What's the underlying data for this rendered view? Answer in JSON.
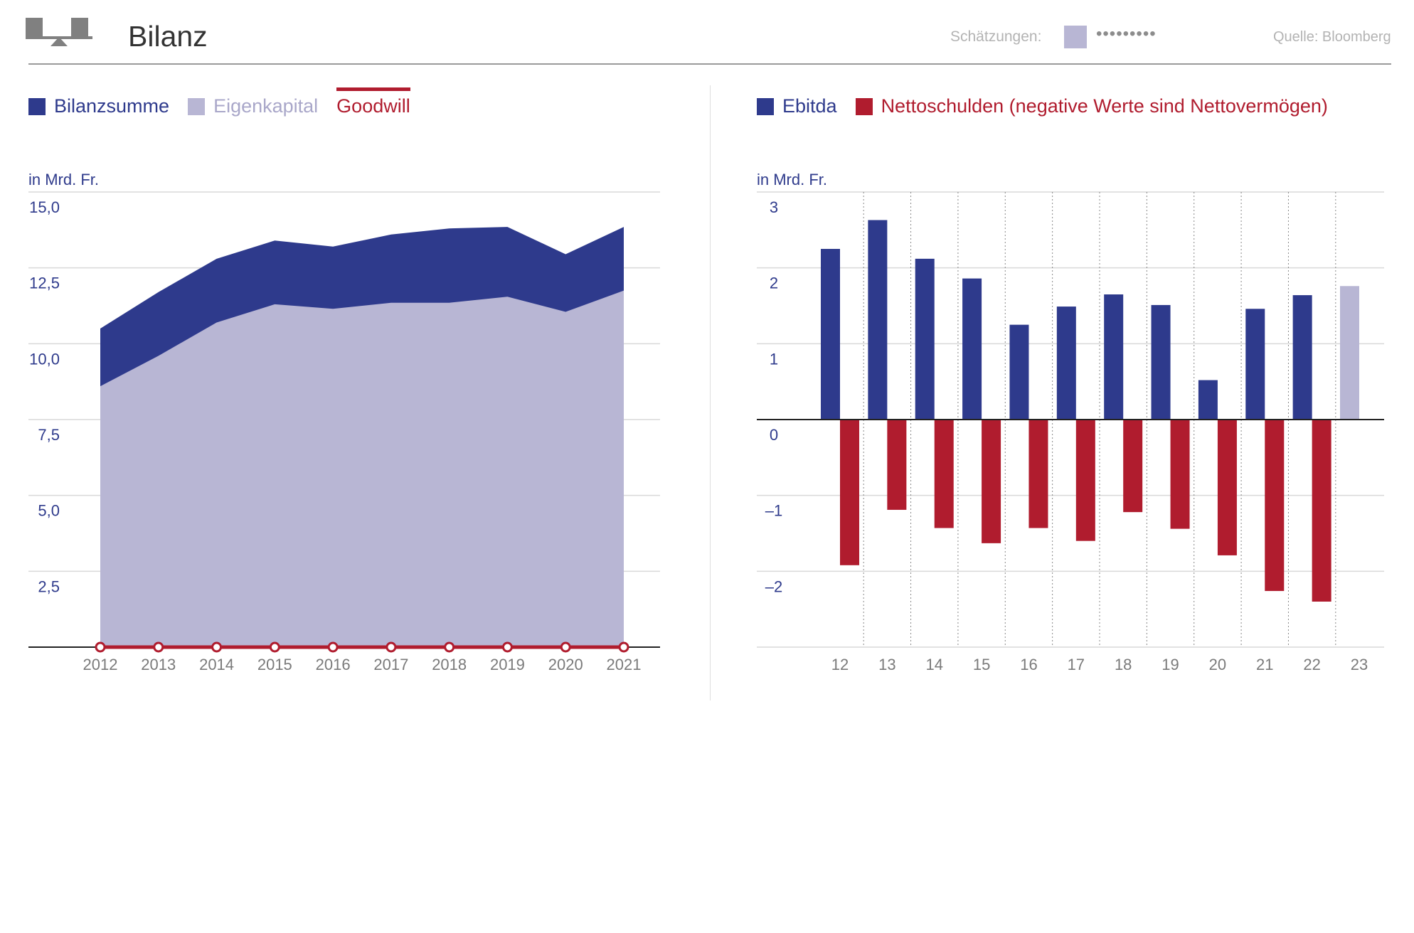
{
  "header": {
    "title": "Bilanz",
    "estimates_label": "Schätzungen:",
    "estimates_dots": "•••••••••",
    "source": "Quelle: Bloomberg",
    "logo_icon": "balance-scale-icon"
  },
  "colors": {
    "navy": "#2e3a8c",
    "lavender": "#b8b6d4",
    "red": "#b01c2e",
    "estimate": "#b8b6d4",
    "grid": "#d9d9d9",
    "axis_text": "#2f3b8c",
    "tick_text": "#7a7a7a"
  },
  "chart_data": [
    {
      "type": "area",
      "unit_label": "in Mrd. Fr.",
      "x": [
        "2012",
        "2013",
        "2014",
        "2015",
        "2016",
        "2017",
        "2018",
        "2019",
        "2020",
        "2021"
      ],
      "ylim": [
        0,
        15
      ],
      "y_ticks": [
        "15,0",
        "12,5",
        "10,0",
        "7,5",
        "5,0",
        "2,5"
      ],
      "y_tick_values": [
        15,
        12.5,
        10,
        7.5,
        5,
        2.5
      ],
      "legend": [
        "Bilanzsumme",
        "Eigenkapital",
        "Goodwill"
      ],
      "series": [
        {
          "name": "Bilanzsumme",
          "values": [
            10.5,
            11.7,
            12.8,
            13.4,
            13.2,
            13.6,
            13.8,
            13.85,
            12.95,
            13.85
          ]
        },
        {
          "name": "Eigenkapital",
          "values": [
            8.6,
            9.6,
            10.7,
            11.3,
            11.15,
            11.35,
            11.35,
            11.55,
            11.05,
            11.75
          ]
        },
        {
          "name": "Goodwill",
          "values": [
            0,
            0,
            0,
            0,
            0,
            0,
            0,
            0,
            0,
            0
          ]
        }
      ]
    },
    {
      "type": "bar",
      "unit_label": "in Mrd. Fr.",
      "categories": [
        "12",
        "13",
        "14",
        "15",
        "16",
        "17",
        "18",
        "19",
        "20",
        "21",
        "22",
        "23"
      ],
      "ylim": [
        -3,
        3
      ],
      "y_ticks": [
        "3",
        "2",
        "1",
        "0",
        "–1",
        "–2"
      ],
      "y_tick_values": [
        3,
        2,
        1,
        0,
        -1,
        -2
      ],
      "legend": [
        "Ebitda",
        "Nettoschulden (negative Werte sind Nettovermögen)"
      ],
      "series": [
        {
          "name": "Ebitda",
          "values": [
            2.25,
            2.63,
            2.12,
            1.86,
            1.25,
            1.49,
            1.65,
            1.51,
            0.52,
            1.46,
            1.64,
            1.76
          ]
        },
        {
          "name": "Nettoschulden (negative Werte sind Nettovermögen)",
          "values": [
            -1.92,
            -1.19,
            -1.43,
            -1.63,
            -1.43,
            -1.6,
            -1.22,
            -1.44,
            -1.79,
            -2.26,
            -2.4,
            null
          ]
        }
      ],
      "estimate_categories": [
        "23"
      ]
    }
  ]
}
